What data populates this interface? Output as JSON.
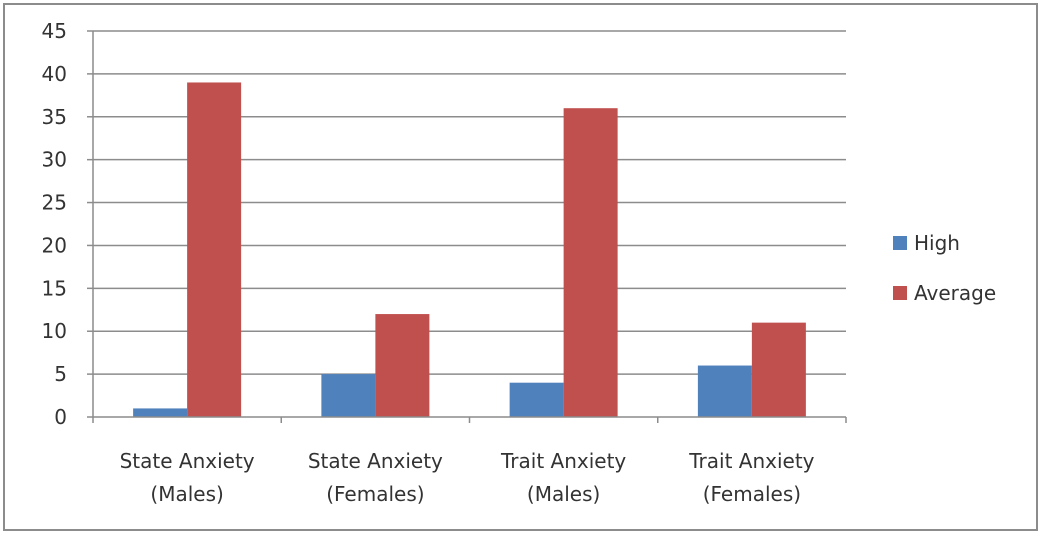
{
  "chart_data": {
    "type": "bar",
    "categories": [
      [
        "State Anxiety",
        "(Males)"
      ],
      [
        "State Anxiety",
        "(Females)"
      ],
      [
        "Trait Anxiety",
        "(Males)"
      ],
      [
        "Trait Anxiety",
        "(Females)"
      ]
    ],
    "series": [
      {
        "name": "High",
        "color": "#4f81bd",
        "values": [
          1,
          5,
          4,
          6
        ]
      },
      {
        "name": "Average",
        "color": "#c0504d",
        "values": [
          39,
          12,
          36,
          11
        ]
      }
    ],
    "yticks": [
      "0",
      "5",
      "10",
      "15",
      "20",
      "25",
      "30",
      "35",
      "40",
      "45"
    ],
    "ylim": [
      0,
      45
    ],
    "grid": true,
    "legend_position": "right"
  }
}
